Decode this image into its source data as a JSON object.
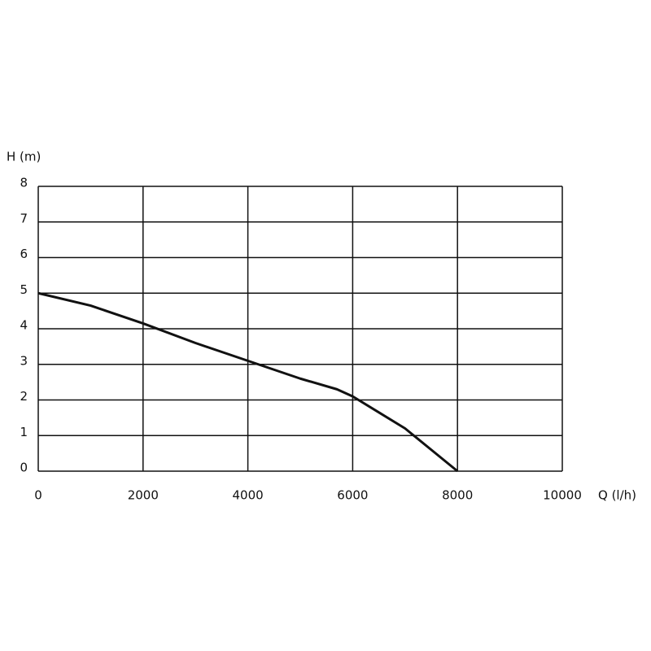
{
  "chart_data": {
    "type": "line",
    "x_label": "Q (l/h)",
    "y_label": "H (m)",
    "series": [
      {
        "color": "#111111",
        "x": [
          0,
          1000,
          2000,
          3000,
          4000,
          5000,
          5700,
          6000,
          6500,
          7000,
          7500,
          8000
        ],
        "values": [
          5,
          4.65,
          4.15,
          3.6,
          3.1,
          2.6,
          2.3,
          2.1,
          1.65,
          1.2,
          0.6,
          0
        ]
      }
    ],
    "xlim": [
      0,
      10000
    ],
    "xticks": [
      0,
      2000,
      4000,
      6000,
      8000,
      10000
    ],
    "ylim": [
      0,
      8
    ],
    "yticks": [
      0,
      1,
      2,
      3,
      4,
      5,
      6,
      7,
      8
    ],
    "grid": true
  }
}
